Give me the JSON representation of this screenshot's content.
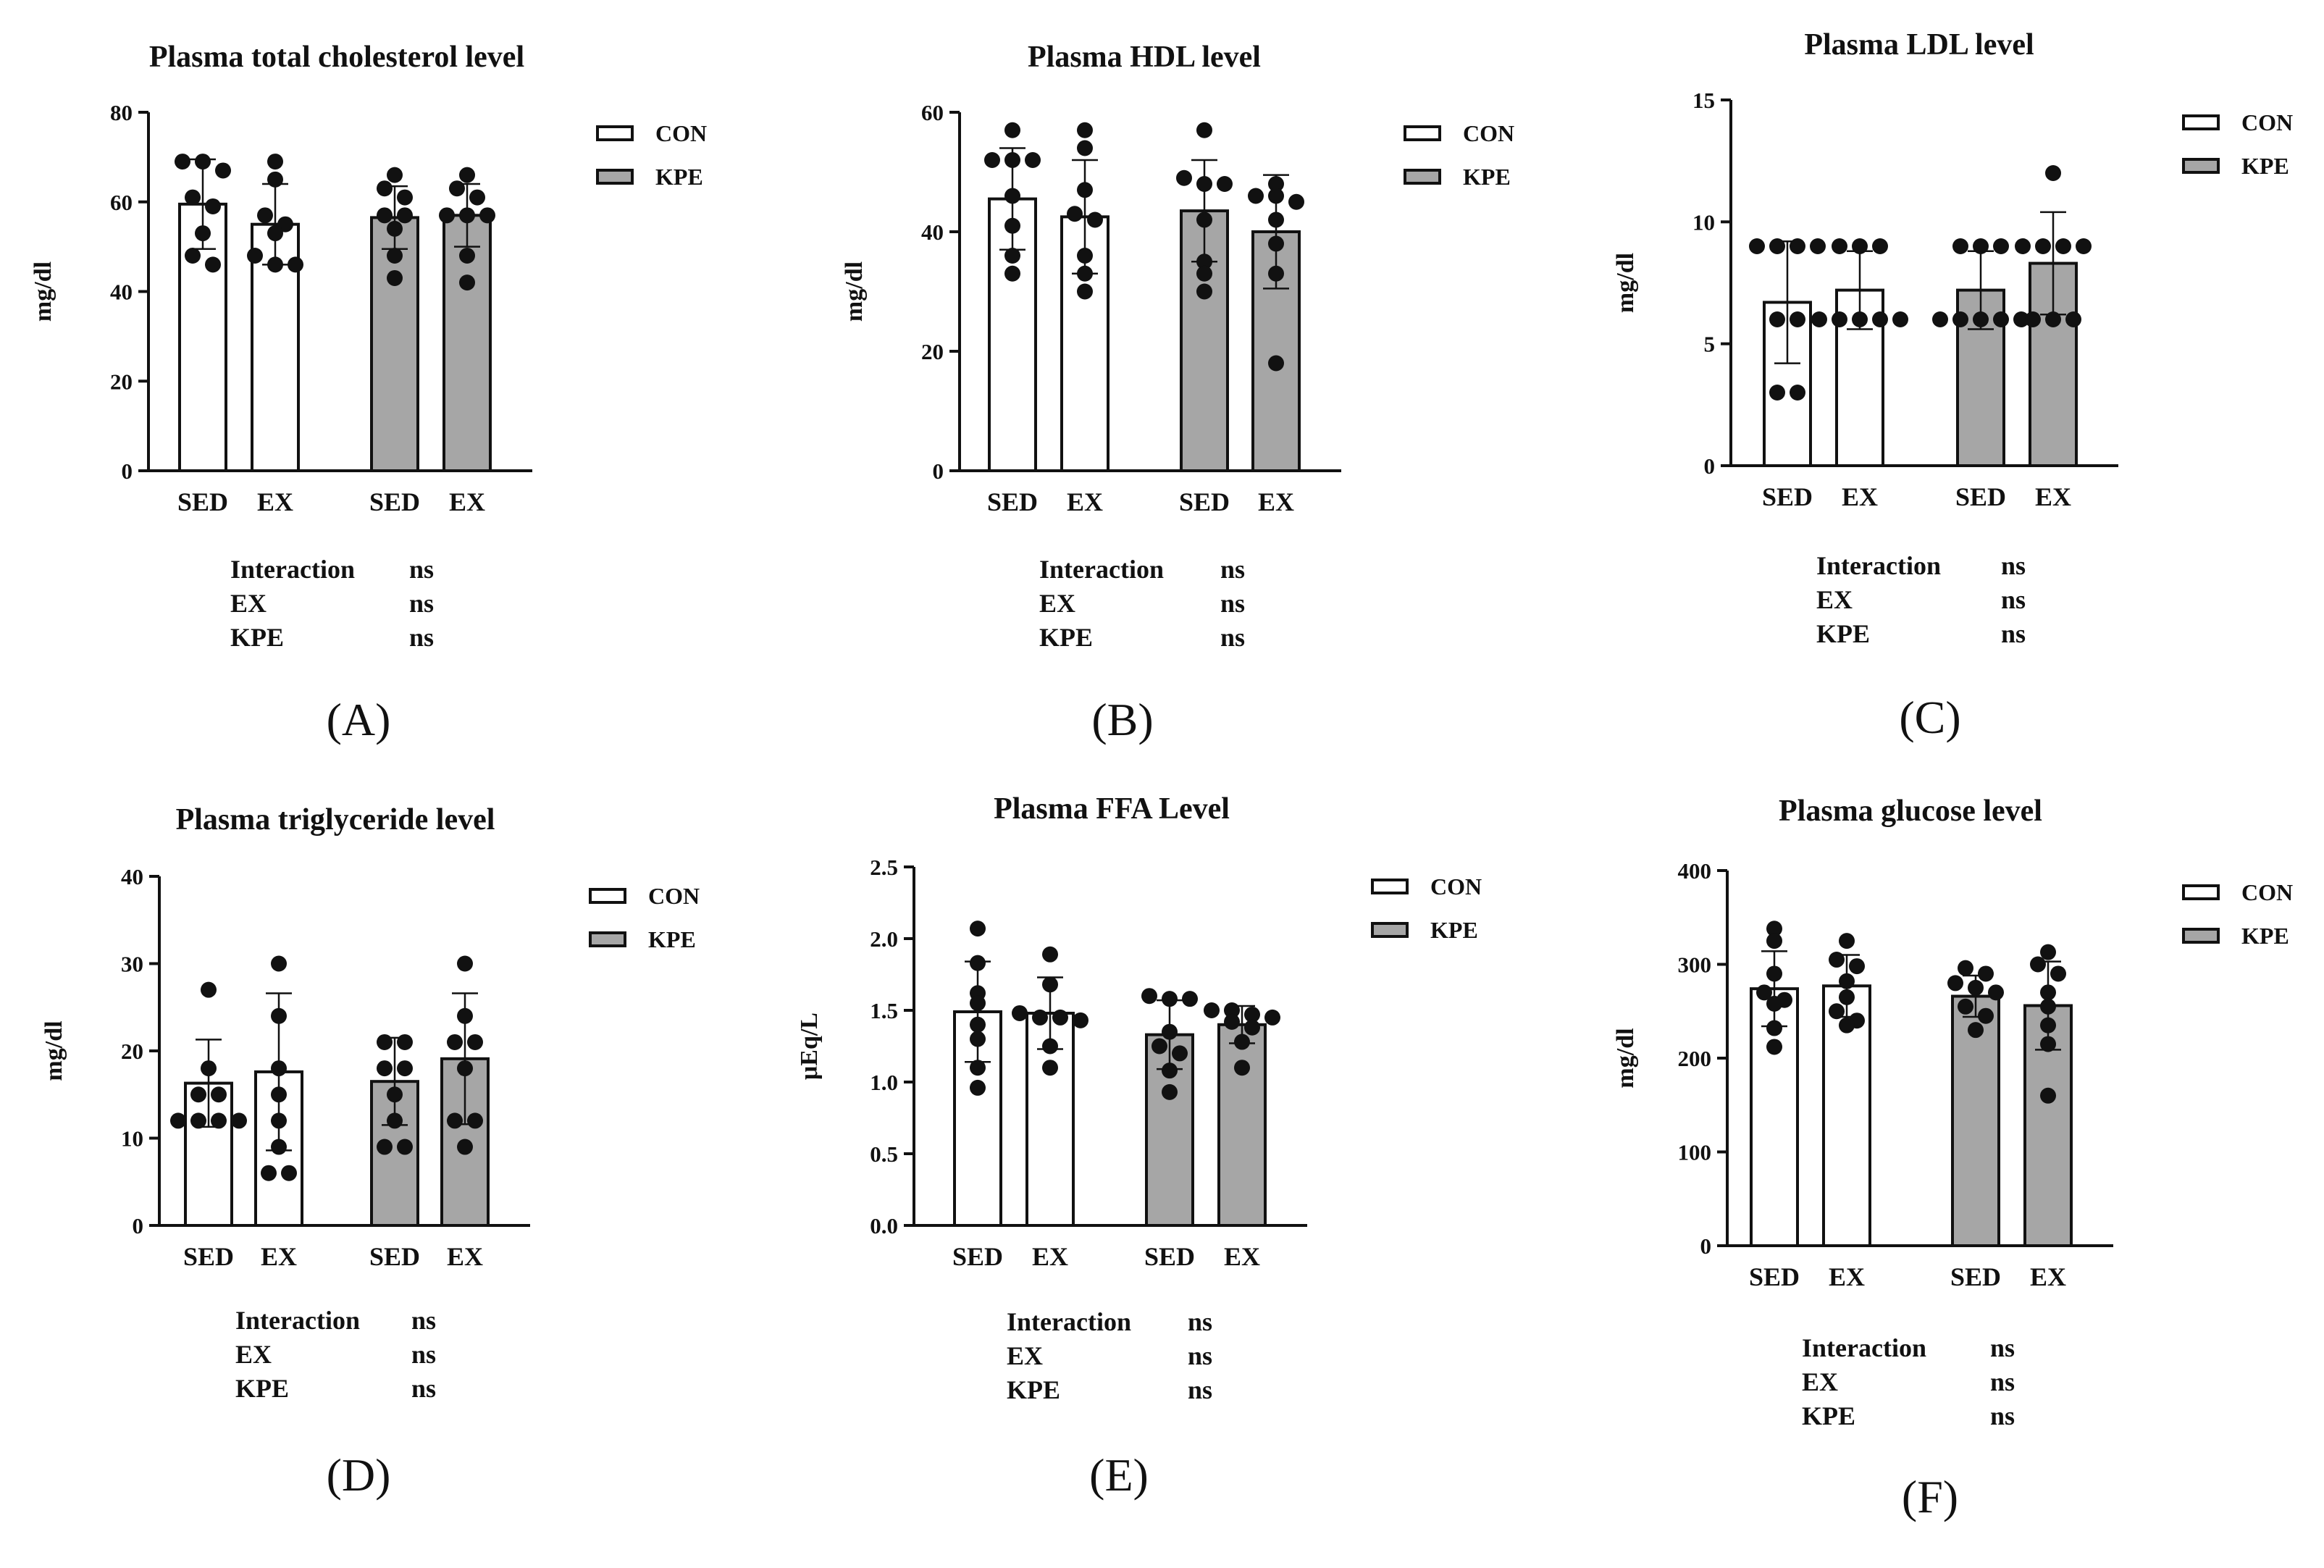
{
  "chart_data": [
    {
      "type": "bar",
      "panel_label": "(A)",
      "title": "Plasma total cholesterol level",
      "ylabel": "mg/dl",
      "ylim": [
        0,
        80
      ],
      "yticks": [
        "0",
        "20",
        "40",
        "60",
        "80"
      ],
      "categories": [
        "SED",
        "EX",
        "SED",
        "EX"
      ],
      "legend": [
        "CON",
        "KPE"
      ],
      "series": [
        {
          "name": "CON SED",
          "group": "CON",
          "mean": 59.5,
          "sd": 10,
          "points": [
            69,
            69,
            67,
            61,
            59,
            53,
            48,
            46
          ]
        },
        {
          "name": "CON EX",
          "group": "CON",
          "mean": 55,
          "sd": 9,
          "points": [
            69,
            65,
            57,
            55,
            53,
            48,
            46,
            46
          ]
        },
        {
          "name": "KPE SED",
          "group": "KPE",
          "mean": 56.5,
          "sd": 7,
          "points": [
            66,
            63,
            61,
            57,
            57,
            54,
            48,
            43
          ]
        },
        {
          "name": "KPE EX",
          "group": "KPE",
          "mean": 57,
          "sd": 7,
          "points": [
            66,
            63,
            61,
            57,
            57,
            57,
            48,
            42
          ]
        }
      ],
      "stats": [
        {
          "term": "Interaction",
          "result": "ns"
        },
        {
          "term": "EX",
          "result": "ns"
        },
        {
          "term": "KPE",
          "result": "ns"
        }
      ]
    },
    {
      "type": "bar",
      "panel_label": "(B)",
      "title": "Plasma HDL level",
      "ylabel": "mg/dl",
      "ylim": [
        0,
        60
      ],
      "yticks": [
        "0",
        "20",
        "40",
        "60"
      ],
      "categories": [
        "SED",
        "EX",
        "SED",
        "EX"
      ],
      "legend": [
        "CON",
        "KPE"
      ],
      "series": [
        {
          "name": "CON SED",
          "group": "CON",
          "mean": 45.5,
          "sd": 8.5,
          "points": [
            57,
            52,
            52,
            52,
            46,
            41,
            36,
            33
          ]
        },
        {
          "name": "CON EX",
          "group": "CON",
          "mean": 42.5,
          "sd": 9.5,
          "points": [
            57,
            54,
            47,
            43,
            42,
            36,
            33,
            30
          ]
        },
        {
          "name": "KPE SED",
          "group": "KPE",
          "mean": 43.5,
          "sd": 8.5,
          "points": [
            57,
            49,
            48,
            48,
            42,
            35,
            33,
            30
          ]
        },
        {
          "name": "KPE EX",
          "group": "KPE",
          "mean": 40,
          "sd": 9.5,
          "points": [
            48,
            46,
            46,
            45,
            42,
            38,
            33,
            18
          ]
        }
      ],
      "stats": [
        {
          "term": "Interaction",
          "result": "ns"
        },
        {
          "term": "EX",
          "result": "ns"
        },
        {
          "term": "KPE",
          "result": "ns"
        }
      ]
    },
    {
      "type": "bar",
      "panel_label": "(C)",
      "title": "Plasma LDL level",
      "ylabel": "mg/dl",
      "ylim": [
        0,
        15
      ],
      "yticks": [
        "0",
        "5",
        "10",
        "15"
      ],
      "categories": [
        "SED",
        "EX",
        "SED",
        "EX"
      ],
      "legend": [
        "CON",
        "KPE"
      ],
      "series": [
        {
          "name": "CON SED",
          "group": "CON",
          "mean": 6.7,
          "sd": 2.5,
          "points": [
            9,
            9,
            9,
            9,
            6,
            6,
            3,
            3
          ]
        },
        {
          "name": "CON EX",
          "group": "CON",
          "mean": 7.2,
          "sd": 1.6,
          "points": [
            9,
            9,
            9,
            6,
            6,
            6,
            6,
            6
          ]
        },
        {
          "name": "KPE SED",
          "group": "KPE",
          "mean": 7.2,
          "sd": 1.6,
          "points": [
            9,
            9,
            9,
            6,
            6,
            6,
            6,
            6
          ]
        },
        {
          "name": "KPE EX",
          "group": "KPE",
          "mean": 8.3,
          "sd": 2.1,
          "points": [
            12,
            9,
            9,
            9,
            9,
            6,
            6,
            6
          ]
        }
      ],
      "stats": [
        {
          "term": "Interaction",
          "result": "ns"
        },
        {
          "term": "EX",
          "result": "ns"
        },
        {
          "term": "KPE",
          "result": "ns"
        }
      ]
    },
    {
      "type": "bar",
      "panel_label": "(D)",
      "title": "Plasma triglyceride level",
      "ylabel": "mg/dl",
      "ylim": [
        0,
        40
      ],
      "yticks": [
        "0",
        "10",
        "20",
        "30",
        "40"
      ],
      "categories": [
        "SED",
        "EX",
        "SED",
        "EX"
      ],
      "legend": [
        "CON",
        "KPE"
      ],
      "series": [
        {
          "name": "CON SED",
          "group": "CON",
          "mean": 16.3,
          "sd": 5,
          "points": [
            27,
            18,
            15,
            15,
            12,
            12,
            12,
            12
          ]
        },
        {
          "name": "CON EX",
          "group": "CON",
          "mean": 17.6,
          "sd": 9,
          "points": [
            30,
            24,
            18,
            15,
            12,
            9,
            6,
            6
          ]
        },
        {
          "name": "KPE SED",
          "group": "KPE",
          "mean": 16.5,
          "sd": 5,
          "points": [
            21,
            21,
            18,
            18,
            15,
            12,
            9,
            9
          ]
        },
        {
          "name": "KPE EX",
          "group": "KPE",
          "mean": 19.1,
          "sd": 7.5,
          "points": [
            30,
            24,
            21,
            21,
            18,
            12,
            12,
            9
          ]
        }
      ],
      "stats": [
        {
          "term": "Interaction",
          "result": "ns"
        },
        {
          "term": "EX",
          "result": "ns"
        },
        {
          "term": "KPE",
          "result": "ns"
        }
      ]
    },
    {
      "type": "bar",
      "panel_label": "(E)",
      "title": "Plasma FFA Level",
      "ylabel": "μEq/L",
      "ylim": [
        0,
        2.5
      ],
      "yticks": [
        "0.0",
        "0.5",
        "1.0",
        "1.5",
        "2.0",
        "2.5"
      ],
      "categories": [
        "SED",
        "EX",
        "SED",
        "EX"
      ],
      "legend": [
        "CON",
        "KPE"
      ],
      "series": [
        {
          "name": "CON SED",
          "group": "CON",
          "mean": 1.49,
          "sd": 0.35,
          "points": [
            2.07,
            1.83,
            1.62,
            1.55,
            1.4,
            1.3,
            1.1,
            0.96
          ]
        },
        {
          "name": "CON EX",
          "group": "CON",
          "mean": 1.48,
          "sd": 0.25,
          "points": [
            1.89,
            1.68,
            1.48,
            1.45,
            1.45,
            1.43,
            1.25,
            1.1
          ]
        },
        {
          "name": "KPE SED",
          "group": "KPE",
          "mean": 1.33,
          "sd": 0.24,
          "points": [
            1.6,
            1.58,
            1.58,
            1.35,
            1.25,
            1.2,
            1.08,
            0.93
          ]
        },
        {
          "name": "KPE EX",
          "group": "KPE",
          "mean": 1.4,
          "sd": 0.13,
          "points": [
            1.5,
            1.5,
            1.47,
            1.45,
            1.42,
            1.38,
            1.28,
            1.1
          ]
        }
      ],
      "stats": [
        {
          "term": "Interaction",
          "result": "ns"
        },
        {
          "term": "EX",
          "result": "ns"
        },
        {
          "term": "KPE",
          "result": "ns"
        }
      ]
    },
    {
      "type": "bar",
      "panel_label": "(F)",
      "title": "Plasma glucose level",
      "ylabel": "mg/dl",
      "ylim": [
        0,
        400
      ],
      "yticks": [
        "0",
        "100",
        "200",
        "300",
        "400"
      ],
      "categories": [
        "SED",
        "EX",
        "SED",
        "EX"
      ],
      "legend": [
        "CON",
        "KPE"
      ],
      "series": [
        {
          "name": "CON SED",
          "group": "CON",
          "mean": 274,
          "sd": 40,
          "points": [
            338,
            325,
            290,
            270,
            262,
            258,
            232,
            212
          ]
        },
        {
          "name": "CON EX",
          "group": "CON",
          "mean": 277,
          "sd": 33,
          "points": [
            325,
            305,
            298,
            282,
            265,
            250,
            240,
            235
          ]
        },
        {
          "name": "KPE SED",
          "group": "KPE",
          "mean": 266,
          "sd": 22,
          "points": [
            296,
            290,
            280,
            275,
            270,
            255,
            245,
            230
          ]
        },
        {
          "name": "KPE EX",
          "group": "KPE",
          "mean": 256,
          "sd": 47,
          "points": [
            313,
            300,
            290,
            270,
            255,
            235,
            215,
            160
          ]
        }
      ],
      "stats": [
        {
          "term": "Interaction",
          "result": "ns"
        },
        {
          "term": "EX",
          "result": "ns"
        },
        {
          "term": "KPE",
          "result": "ns"
        }
      ]
    }
  ],
  "colors": {
    "con_fill": "#ffffff",
    "kpe_fill": "#a6a6a6",
    "ink": "#111111"
  }
}
